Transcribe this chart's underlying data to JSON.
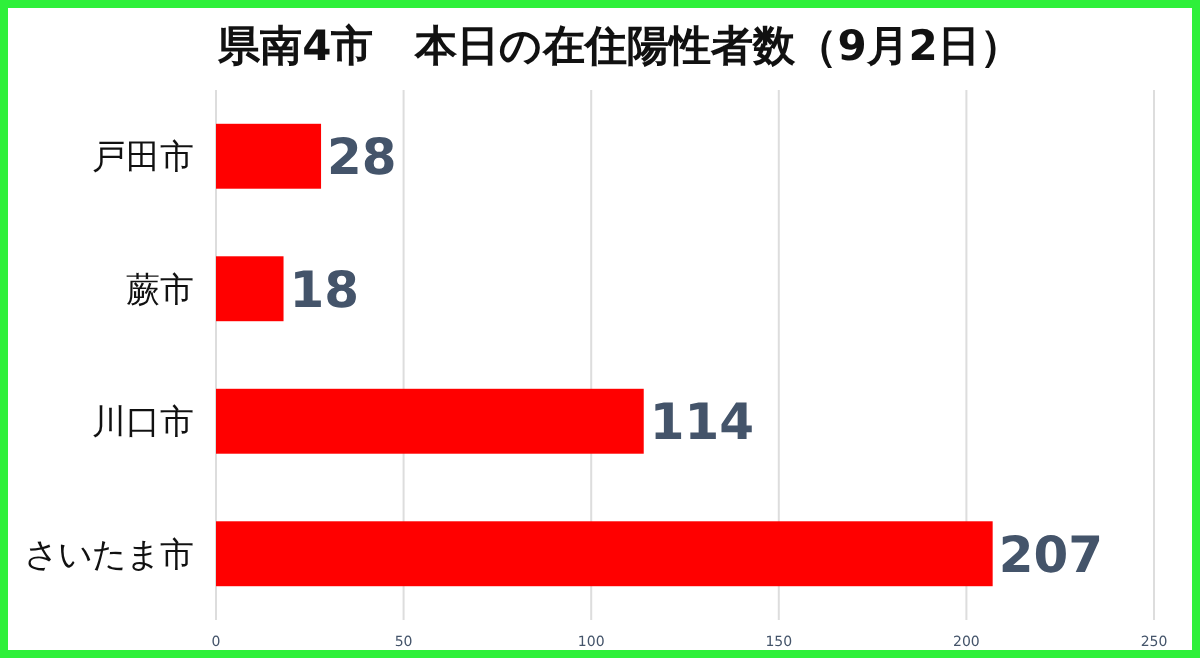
{
  "chart_data": {
    "type": "bar",
    "orientation": "horizontal",
    "title": "県南4市　本日の在住陽性者数（9月2日）",
    "categories": [
      "戸田市",
      "蕨市",
      "川口市",
      "さいたま市"
    ],
    "values": [
      28,
      18,
      114,
      207
    ],
    "color": "#ff0000",
    "xlim": [
      0,
      250
    ],
    "xticks": [
      0,
      50,
      100,
      150,
      200,
      250
    ],
    "grid": "x",
    "data_labels": true
  }
}
